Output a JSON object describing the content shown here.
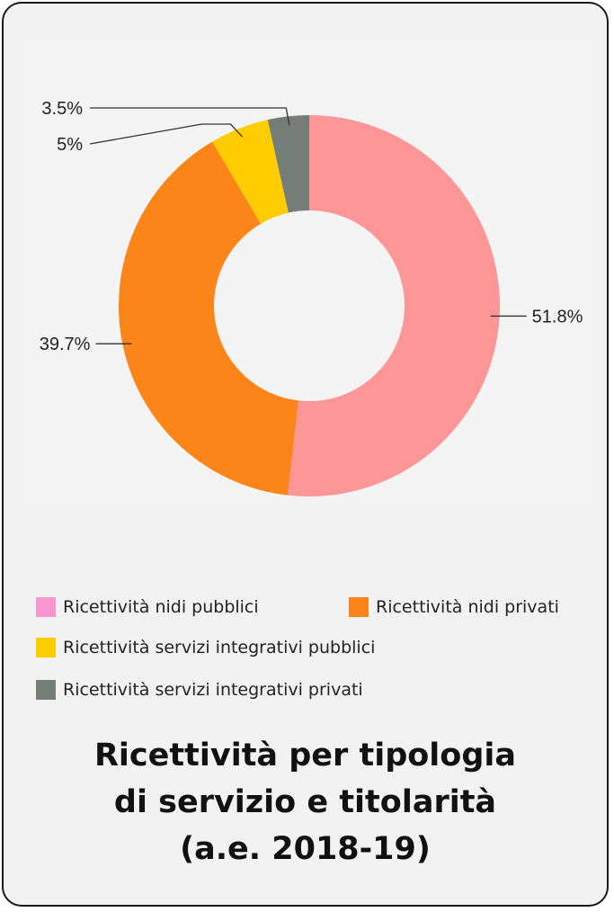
{
  "chart_data": {
    "type": "pie",
    "donut": true,
    "categories": [
      "Ricettività nidi pubblici",
      "Ricettività nidi privati",
      "Ricettività servizi integrativi pubblici",
      "Ricettività servizi integrativi privati"
    ],
    "values": [
      51.8,
      39.7,
      5,
      3.5
    ],
    "data_labels": [
      "51.8%",
      "39.7%",
      "5%",
      "3.5%"
    ],
    "colors": [
      "#fd9797",
      "#fc8519",
      "#ffcc00",
      "#757d78"
    ],
    "legend_colors": [
      "#f996cf",
      "#fc8519",
      "#ffcc00",
      "#757d78"
    ],
    "title_lines": [
      "Ricettività per tipologia",
      "di servizio e titolarità",
      "(a.e. 2018-19)"
    ],
    "legend_position": "bottom"
  }
}
